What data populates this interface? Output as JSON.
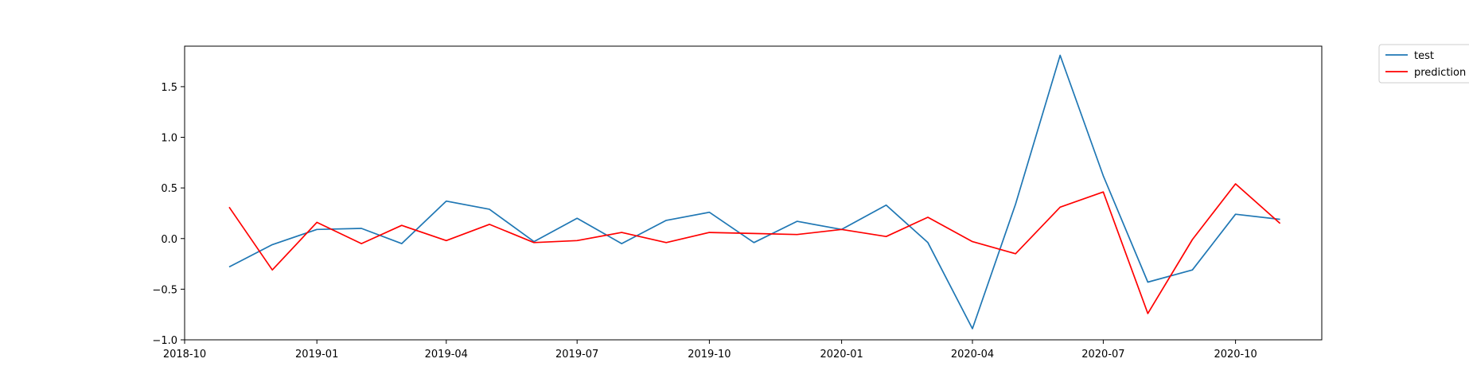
{
  "chart_data": {
    "type": "line",
    "x": [
      "2018-11",
      "2018-12",
      "2019-01",
      "2019-02",
      "2019-03",
      "2019-04",
      "2019-05",
      "2019-06",
      "2019-07",
      "2019-08",
      "2019-09",
      "2019-10",
      "2019-11",
      "2019-12",
      "2020-01",
      "2020-02",
      "2020-03",
      "2020-04",
      "2020-05",
      "2020-06",
      "2020-07",
      "2020-08",
      "2020-09",
      "2020-10",
      "2020-11"
    ],
    "series": [
      {
        "name": "test",
        "color": "#1f77b4",
        "values": [
          -0.28,
          -0.06,
          0.09,
          0.1,
          -0.05,
          0.37,
          0.29,
          -0.03,
          0.2,
          -0.05,
          0.18,
          0.26,
          -0.04,
          0.17,
          0.09,
          0.33,
          -0.04,
          -0.89,
          0.34,
          1.81,
          0.62,
          -0.43,
          -0.31,
          0.24,
          0.19
        ]
      },
      {
        "name": "prediction",
        "color": "#ff0000",
        "values": [
          0.31,
          -0.31,
          0.16,
          -0.05,
          0.13,
          -0.02,
          0.14,
          -0.04,
          -0.02,
          0.06,
          -0.04,
          0.06,
          0.05,
          0.04,
          0.09,
          0.02,
          0.21,
          -0.03,
          -0.15,
          0.31,
          0.46,
          -0.74,
          -0.01,
          0.54,
          0.15
        ]
      }
    ],
    "xlim": [
      "2018-10-01",
      "2020-11-30"
    ],
    "ylim": [
      -1.0,
      1.9
    ],
    "xticks": [
      "2018-10",
      "2019-01",
      "2019-04",
      "2019-07",
      "2019-10",
      "2020-01",
      "2020-04",
      "2020-07",
      "2020-10"
    ],
    "yticks": [
      -1.0,
      -0.5,
      0.0,
      0.5,
      1.0,
      1.5
    ],
    "ytick_labels": [
      "−1.0",
      "−0.5",
      "0.0",
      "0.5",
      "1.0",
      "1.5"
    ],
    "grid": false,
    "legend_placement": "outside-top-right",
    "title": "",
    "xlabel": "",
    "ylabel": ""
  }
}
